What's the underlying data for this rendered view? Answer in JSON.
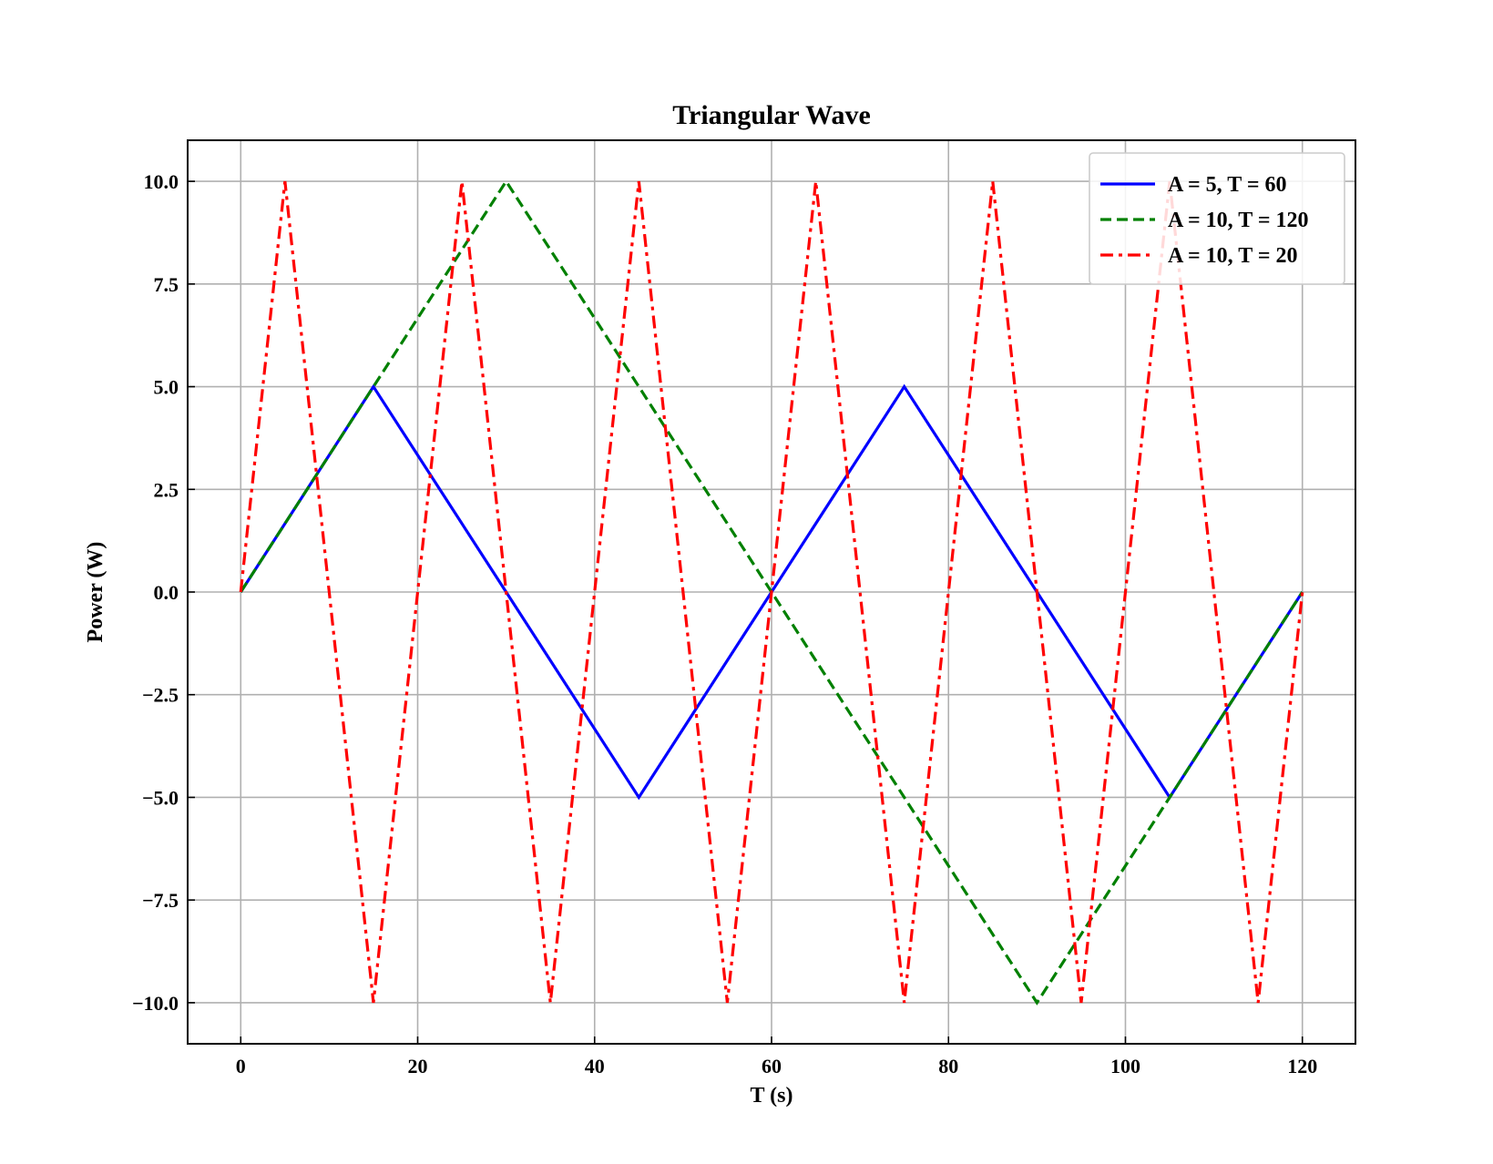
{
  "chart_data": {
    "type": "line",
    "title": "Triangular Wave",
    "xlabel": "T (s)",
    "ylabel": "Power (W)",
    "xlim": [
      -6,
      126
    ],
    "ylim": [
      -11,
      11
    ],
    "xticks": [
      0,
      20,
      40,
      60,
      80,
      100,
      120
    ],
    "xtick_labels": [
      "0",
      "20",
      "40",
      "60",
      "80",
      "100",
      "120"
    ],
    "yticks": [
      10,
      7.5,
      5,
      2.5,
      0,
      -2.5,
      -5,
      -7.5,
      -10
    ],
    "ytick_labels": [
      "10.0",
      "7.5",
      "5.0",
      "2.5",
      "0.0",
      "−2.5",
      "−5.0",
      "−7.5",
      "−10.0"
    ],
    "grid": true,
    "legend_position": "top-right",
    "series": [
      {
        "name": "A = 5, T = 60",
        "color": "#0000ff",
        "style": "solid",
        "x": [
          0,
          15,
          45,
          75,
          105,
          120
        ],
        "y": [
          0,
          5,
          -5,
          5,
          -5,
          0
        ]
      },
      {
        "name": "A = 10, T = 120",
        "color": "#008000",
        "style": "dashed",
        "x": [
          0,
          30,
          90,
          120
        ],
        "y": [
          0,
          10,
          -10,
          0
        ]
      },
      {
        "name": "A = 10, T = 20",
        "color": "#ff0000",
        "style": "dashdot",
        "x": [
          0,
          5,
          15,
          25,
          35,
          45,
          55,
          65,
          75,
          85,
          95,
          105,
          115,
          120
        ],
        "y": [
          0,
          10,
          -10,
          10,
          -10,
          10,
          -10,
          10,
          -10,
          10,
          -10,
          10,
          -10,
          0
        ]
      }
    ]
  }
}
